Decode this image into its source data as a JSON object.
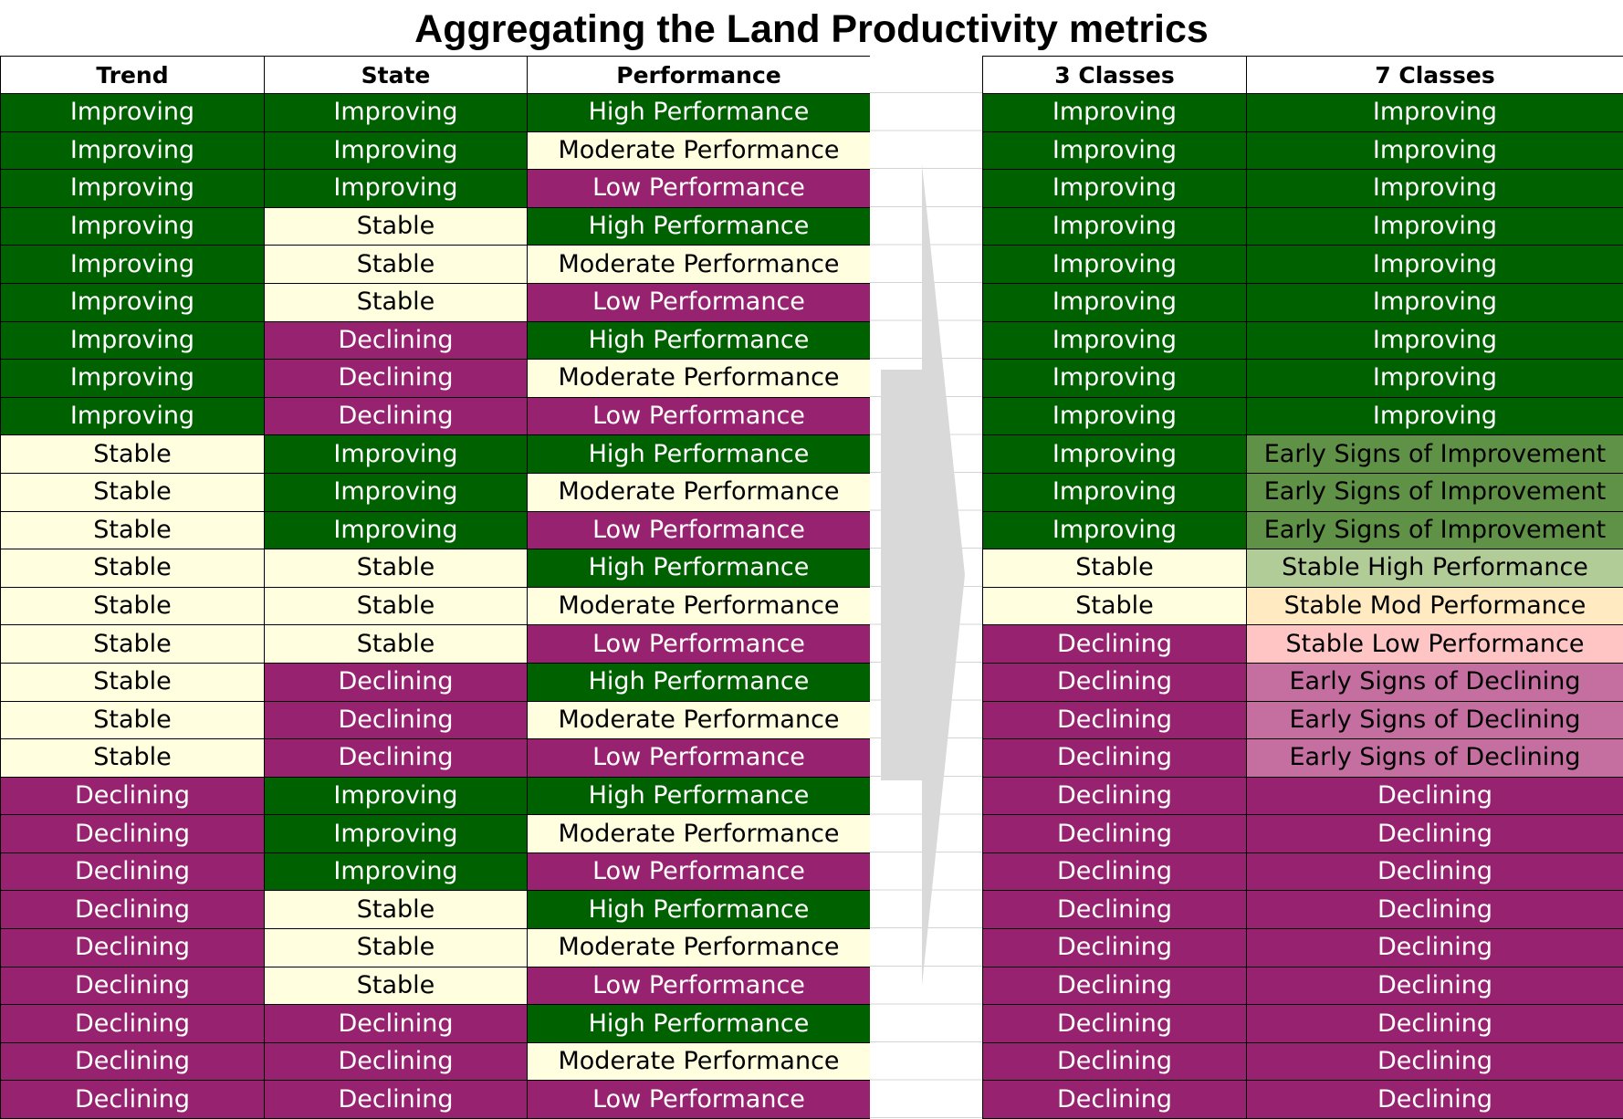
{
  "title": "Aggregating the Land Productivity metrics",
  "colors": {
    "improving": "#006100",
    "stable": "#ffffe0",
    "declining": "#97226f",
    "early_signs_of_improvement": "#5f9147",
    "stable_high_performance": "#b2cc97",
    "stable_mod_performance": "#ffeac2",
    "stable_low_performance": "#ffc4c4",
    "early_signs_of_declining": "#c46fa0",
    "arrow": "#d9d9d9"
  },
  "icons": {
    "arrow": "right-arrow-icon"
  },
  "left_table": {
    "headers": [
      "Trend",
      "State",
      "Performance"
    ],
    "rows": [
      [
        "Improving",
        "Improving",
        "High Performance"
      ],
      [
        "Improving",
        "Improving",
        "Moderate Performance"
      ],
      [
        "Improving",
        "Improving",
        "Low Performance"
      ],
      [
        "Improving",
        "Stable",
        "High Performance"
      ],
      [
        "Improving",
        "Stable",
        "Moderate Performance"
      ],
      [
        "Improving",
        "Stable",
        "Low Performance"
      ],
      [
        "Improving",
        "Declining",
        "High Performance"
      ],
      [
        "Improving",
        "Declining",
        "Moderate Performance"
      ],
      [
        "Improving",
        "Declining",
        "Low Performance"
      ],
      [
        "Stable",
        "Improving",
        "High Performance"
      ],
      [
        "Stable",
        "Improving",
        "Moderate Performance"
      ],
      [
        "Stable",
        "Improving",
        "Low Performance"
      ],
      [
        "Stable",
        "Stable",
        "High Performance"
      ],
      [
        "Stable",
        "Stable",
        "Moderate Performance"
      ],
      [
        "Stable",
        "Stable",
        "Low Performance"
      ],
      [
        "Stable",
        "Declining",
        "High Performance"
      ],
      [
        "Stable",
        "Declining",
        "Moderate Performance"
      ],
      [
        "Stable",
        "Declining",
        "Low Performance"
      ],
      [
        "Declining",
        "Improving",
        "High Performance"
      ],
      [
        "Declining",
        "Improving",
        "Moderate Performance"
      ],
      [
        "Declining",
        "Improving",
        "Low Performance"
      ],
      [
        "Declining",
        "Stable",
        "High Performance"
      ],
      [
        "Declining",
        "Stable",
        "Moderate Performance"
      ],
      [
        "Declining",
        "Stable",
        "Low Performance"
      ],
      [
        "Declining",
        "Declining",
        "High Performance"
      ],
      [
        "Declining",
        "Declining",
        "Moderate Performance"
      ],
      [
        "Declining",
        "Declining",
        "Low Performance"
      ]
    ]
  },
  "right_table": {
    "headers": [
      "3 Classes",
      "7 Classes"
    ],
    "rows": [
      [
        "Improving",
        "Improving"
      ],
      [
        "Improving",
        "Improving"
      ],
      [
        "Improving",
        "Improving"
      ],
      [
        "Improving",
        "Improving"
      ],
      [
        "Improving",
        "Improving"
      ],
      [
        "Improving",
        "Improving"
      ],
      [
        "Improving",
        "Improving"
      ],
      [
        "Improving",
        "Improving"
      ],
      [
        "Improving",
        "Improving"
      ],
      [
        "Improving",
        "Early Signs of Improvement"
      ],
      [
        "Improving",
        "Early Signs of Improvement"
      ],
      [
        "Improving",
        "Early Signs of Improvement"
      ],
      [
        "Stable",
        "Stable High Performance"
      ],
      [
        "Stable",
        "Stable Mod Performance"
      ],
      [
        "Declining",
        "Stable Low Performance"
      ],
      [
        "Declining",
        "Early Signs of Declining"
      ],
      [
        "Declining",
        "Early Signs of Declining"
      ],
      [
        "Declining",
        "Early Signs of Declining"
      ],
      [
        "Declining",
        "Declining"
      ],
      [
        "Declining",
        "Declining"
      ],
      [
        "Declining",
        "Declining"
      ],
      [
        "Declining",
        "Declining"
      ],
      [
        "Declining",
        "Declining"
      ],
      [
        "Declining",
        "Declining"
      ],
      [
        "Declining",
        "Declining"
      ],
      [
        "Declining",
        "Declining"
      ],
      [
        "Declining",
        "Declining"
      ]
    ]
  }
}
